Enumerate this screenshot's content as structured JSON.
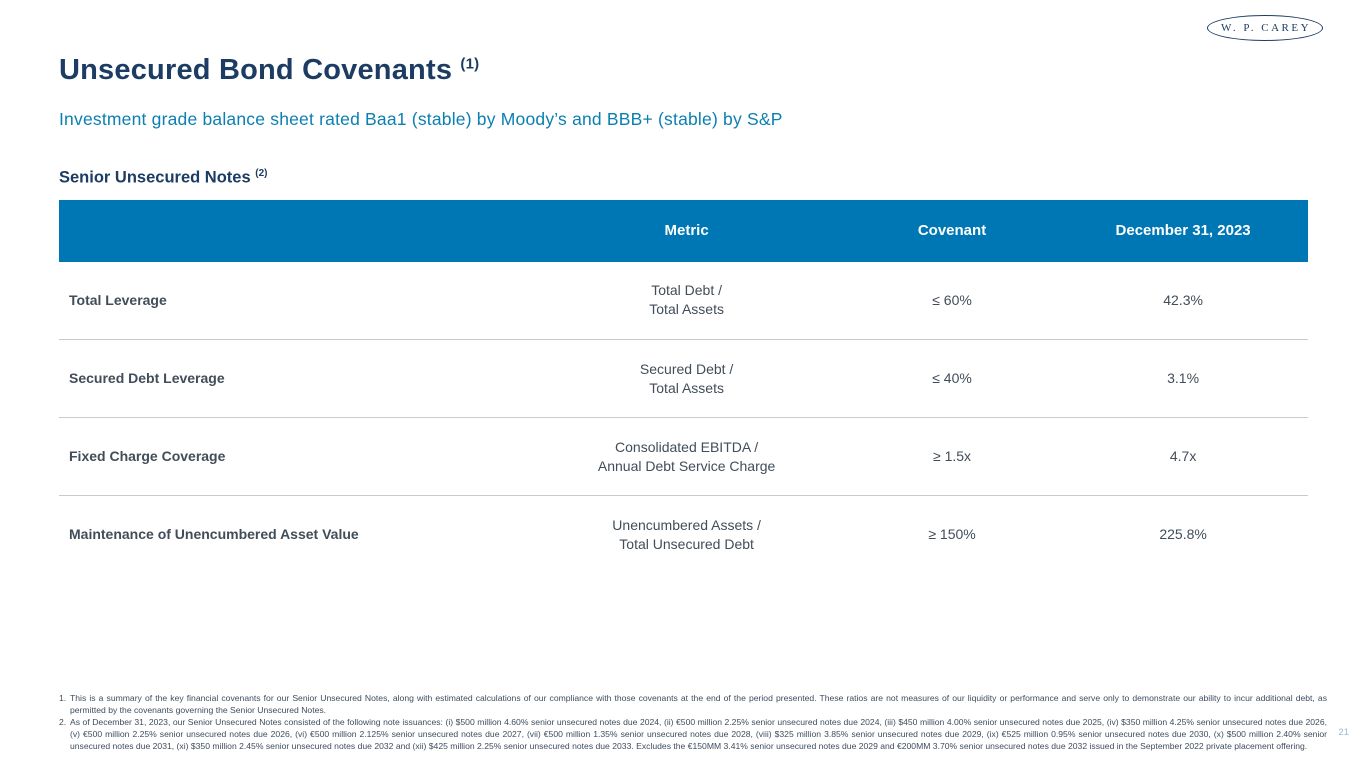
{
  "logo": {
    "text": "W. P. CAREY"
  },
  "title": {
    "text": "Unsecured Bond Covenants",
    "sup": "(1)"
  },
  "subtitle": "Investment grade balance sheet rated Baa1 (stable) by Moody’s and BBB+ (stable) by S&P",
  "section": {
    "text": "Senior Unsecured Notes",
    "sup": "(2)"
  },
  "table": {
    "headers": {
      "col1": "",
      "col2": "Metric",
      "col3": "Covenant",
      "col4": "December 31, 2023"
    },
    "rows": [
      {
        "name": "Total Leverage",
        "metric": [
          "Total Debt /",
          "Total Assets"
        ],
        "covenant": "≤ 60%",
        "value": "42.3%"
      },
      {
        "name": "Secured Debt Leverage",
        "metric": [
          "Secured Debt /",
          "Total Assets"
        ],
        "covenant": "≤ 40%",
        "value": "3.1%"
      },
      {
        "name": "Fixed Charge Coverage",
        "metric": [
          "Consolidated EBITDA /",
          "Annual Debt Service Charge"
        ],
        "covenant": "≥ 1.5x",
        "value": "4.7x"
      },
      {
        "name": "Maintenance of Unencumbered Asset Value",
        "metric": [
          "Unencumbered Assets /",
          "Total Unsecured Debt"
        ],
        "covenant": "≥ 150%",
        "value": "225.8%"
      }
    ]
  },
  "footnotes": [
    {
      "num": "1.",
      "text": "This is a summary of the key financial covenants for our Senior Unsecured Notes, along with estimated calculations of our compliance with those covenants at the end of the period presented. These ratios are not measures of our liquidity or performance and serve only to demonstrate our ability to incur additional debt, as permitted by the covenants governing the Senior Unsecured Notes."
    },
    {
      "num": "2.",
      "text": "As of December 31, 2023, our Senior Unsecured Notes consisted of the following note issuances: (i) $500 million 4.60% senior unsecured notes due 2024, (ii) €500 million 2.25% senior unsecured notes due 2024, (iii) $450 million 4.00% senior unsecured notes due 2025, (iv) $350 million 4.25% senior unsecured notes due 2026, (v) €500 million 2.25% senior unsecured notes due 2026, (vi) €500 million 2.125% senior unsecured notes due 2027, (vii) €500 million 1.35% senior unsecured notes due 2028, (viii) $325 million 3.85% senior unsecured notes due 2029, (ix) €525 million 0.95% senior unsecured notes due 2030, (x) $500 million 2.40% senior unsecured notes due 2031, (xi) $350 million 2.45% senior unsecured notes due 2032 and (xii) $425 million 2.25% senior unsecured notes due 2033. Excludes the €150MM 3.41% senior unsecured notes due 2029 and €200MM 3.70% senior unsecured notes due 2032 issued in the September 2022 private placement offering."
    }
  ],
  "page_number": "21",
  "colors": {
    "navy": "#1d3c64",
    "header_blue": "#0077b5",
    "subtitle_blue": "#0b7fb2",
    "body_text": "#414d59",
    "divider": "#c8cbce",
    "footnote_text": "#3d4d5f",
    "page_number": "#92bcd8"
  }
}
